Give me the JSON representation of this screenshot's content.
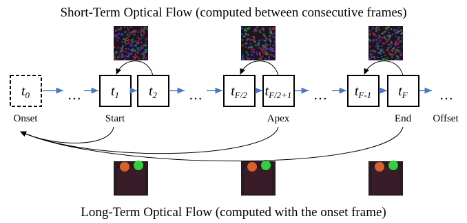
{
  "title_top": "Short-Term Optical Flow (computed between consecutive frames)",
  "title_bottom": "Long-Term Optical Flow (computed with the onset frame)",
  "frames": [
    {
      "base": "t",
      "sub": "0"
    },
    {
      "base": "t",
      "sub": "1"
    },
    {
      "base": "t",
      "sub": "2"
    },
    {
      "base": "t",
      "sub": "F/2"
    },
    {
      "base": "t",
      "sub": "F/2+1"
    },
    {
      "base": "t",
      "sub": "F-1"
    },
    {
      "base": "t",
      "sub": "F"
    }
  ],
  "ellipses": [
    "…",
    "…",
    "…",
    "…"
  ],
  "labels": [
    "Onset",
    "Start",
    "Apex",
    "End",
    "Offset"
  ]
}
